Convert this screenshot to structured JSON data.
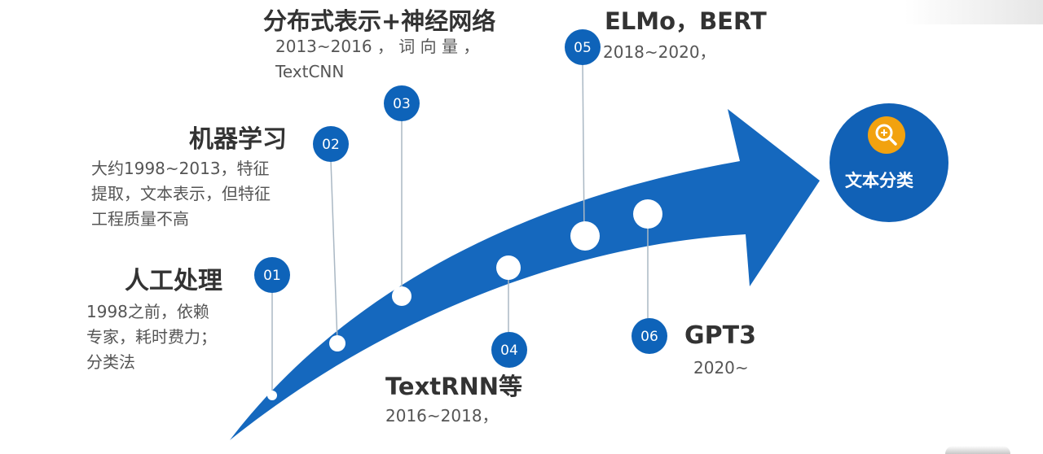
{
  "goal": {
    "label": "文本分类",
    "icon": "magnifier-plus-icon"
  },
  "stages": [
    {
      "num": "01",
      "title": "人工处理",
      "desc": [
        "1998之前，依赖",
        "专家，耗时费力；",
        "分类法"
      ]
    },
    {
      "num": "02",
      "title": "机器学习",
      "desc": [
        "大约1998~2013，特征",
        "提取，文本表示，但特征",
        "工程质量不高"
      ]
    },
    {
      "num": "03",
      "title": "分布式表示+神经网络",
      "desc": [
        "2013~2016  ，  词  向  量  ，",
        "TextCNN"
      ]
    },
    {
      "num": "04",
      "title": "TextRNN等",
      "desc": [
        "2016~2018，"
      ]
    },
    {
      "num": "05",
      "title": "ELMo，BERT",
      "desc": [
        "2018~2020，"
      ]
    },
    {
      "num": "06",
      "title": "GPT3",
      "desc": [
        "2020~"
      ]
    }
  ],
  "colors": {
    "arrow": "#1568be",
    "badge": "#0e63b9",
    "goal": "#1161b6",
    "icon_bg": "#f2a20f",
    "leader": "#aab8c4"
  }
}
